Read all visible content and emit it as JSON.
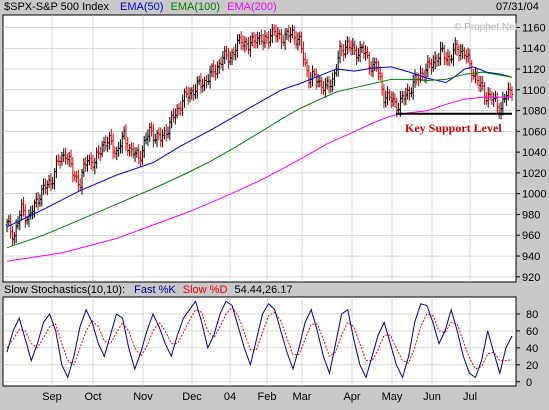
{
  "header": {
    "symbol": "$SPX-S&P 500 Index",
    "ema50": "EMA(50)",
    "ema100": "EMA(100)",
    "ema200": "EMA(200)",
    "date": "07/31/04",
    "watermark": "© Prophet.Net"
  },
  "indicator": {
    "name": "Slow Stochastics(10,10):",
    "fast": "Fast %K",
    "slow": "Slow %D",
    "values": "54.44,26.17"
  },
  "annotation": {
    "text": "Key Support Level",
    "support_level": 1077
  },
  "colors": {
    "bar_up": "#000000",
    "bar_down": "#e00000",
    "ema50": "#0000cc",
    "ema100": "#008000",
    "ema200": "#ff00ff",
    "fast_k": "#00008b",
    "slow_d": "#ee0000",
    "annotation": "#d00000"
  },
  "chart_data": [
    {
      "type": "ohlc",
      "title": "$SPX-S&P 500 Index",
      "x_labels": [
        "Sep",
        "Oct",
        "Nov",
        "Dec",
        "04",
        "Feb",
        "Mar",
        "Apr",
        "May",
        "Jun",
        "Jul"
      ],
      "x_range": [
        "2003-08-15",
        "2004-07-31"
      ],
      "y_ticks": [
        920,
        940,
        960,
        980,
        1000,
        1020,
        1040,
        1060,
        1080,
        1100,
        1120,
        1140,
        1160
      ],
      "ylim": [
        915,
        1172
      ],
      "grid": true,
      "series": [
        {
          "name": "EMA(50)",
          "values": [
            [
              0,
              968
            ],
            [
              20,
              985
            ],
            [
              40,
              1003
            ],
            [
              60,
              1018
            ],
            [
              80,
              1030
            ],
            [
              95,
              1046
            ],
            [
              110,
              1060
            ],
            [
              125,
              1075
            ],
            [
              140,
              1090
            ],
            [
              150,
              1100
            ],
            [
              160,
              1106
            ],
            [
              170,
              1113
            ],
            [
              180,
              1120
            ],
            [
              190,
              1118
            ],
            [
              200,
              1121
            ],
            [
              210,
              1122
            ],
            [
              220,
              1117
            ],
            [
              230,
              1111
            ],
            [
              240,
              1107
            ],
            [
              245,
              1113
            ],
            [
              250,
              1120
            ],
            [
              255,
              1122
            ],
            [
              262,
              1117
            ],
            [
              270,
              1115
            ],
            [
              276,
              1112
            ]
          ]
        },
        {
          "name": "EMA(100)",
          "values": [
            [
              0,
              948
            ],
            [
              20,
              960
            ],
            [
              40,
              975
            ],
            [
              60,
              990
            ],
            [
              80,
              1005
            ],
            [
              95,
              1017
            ],
            [
              110,
              1030
            ],
            [
              125,
              1045
            ],
            [
              140,
              1061
            ],
            [
              150,
              1072
            ],
            [
              160,
              1082
            ],
            [
              170,
              1090
            ],
            [
              180,
              1098
            ],
            [
              190,
              1102
            ],
            [
              200,
              1106
            ],
            [
              210,
              1110
            ],
            [
              220,
              1110
            ],
            [
              230,
              1109
            ],
            [
              240,
              1110
            ],
            [
              250,
              1115
            ],
            [
              260,
              1117
            ],
            [
              270,
              1114
            ],
            [
              276,
              1112
            ]
          ]
        },
        {
          "name": "EMA(200)",
          "values": [
            [
              0,
              935
            ],
            [
              30,
              943
            ],
            [
              60,
              957
            ],
            [
              80,
              970
            ],
            [
              100,
              983
            ],
            [
              120,
              998
            ],
            [
              140,
              1014
            ],
            [
              160,
              1033
            ],
            [
              175,
              1048
            ],
            [
              190,
              1060
            ],
            [
              200,
              1068
            ],
            [
              210,
              1075
            ],
            [
              220,
              1078
            ],
            [
              230,
              1080
            ],
            [
              240,
              1086
            ],
            [
              250,
              1091
            ],
            [
              260,
              1093
            ],
            [
              270,
              1093
            ],
            [
              276,
              1093
            ]
          ]
        }
      ]
    },
    {
      "type": "line",
      "title": "Slow Stochastics(10,10)",
      "y_ticks": [
        0,
        20,
        40,
        60,
        80
      ],
      "ylim": [
        -5,
        100
      ],
      "series": [
        {
          "name": "Fast %K",
          "values": [
            35,
            60,
            75,
            50,
            25,
            45,
            70,
            80,
            60,
            20,
            5,
            30,
            65,
            85,
            70,
            45,
            30,
            55,
            80,
            75,
            40,
            15,
            35,
            60,
            80,
            65,
            45,
            30,
            55,
            75,
            85,
            95,
            70,
            40,
            55,
            80,
            95,
            90,
            65,
            40,
            20,
            50,
            80,
            92,
            85,
            60,
            35,
            15,
            40,
            70,
            85,
            60,
            30,
            10,
            45,
            80,
            85,
            50,
            20,
            5,
            30,
            55,
            70,
            45,
            20,
            5,
            30,
            70,
            92,
            90,
            70,
            45,
            60,
            85,
            60,
            30,
            10,
            5,
            25,
            60,
            35,
            10,
            40,
            54
          ]
        },
        {
          "name": "Slow %D",
          "values": [
            40,
            50,
            62,
            60,
            45,
            40,
            52,
            65,
            68,
            45,
            25,
            20,
            40,
            60,
            72,
            65,
            48,
            45,
            58,
            70,
            60,
            40,
            30,
            42,
            60,
            70,
            60,
            45,
            45,
            58,
            72,
            85,
            82,
            60,
            52,
            65,
            80,
            88,
            78,
            58,
            38,
            38,
            58,
            78,
            82,
            72,
            52,
            32,
            32,
            50,
            68,
            68,
            50,
            30,
            35,
            55,
            70,
            65,
            45,
            25,
            25,
            38,
            55,
            55,
            40,
            25,
            22,
            40,
            65,
            80,
            78,
            60,
            58,
            70,
            68,
            48,
            28,
            15,
            18,
            33,
            35,
            25,
            25,
            26
          ]
        }
      ]
    }
  ]
}
